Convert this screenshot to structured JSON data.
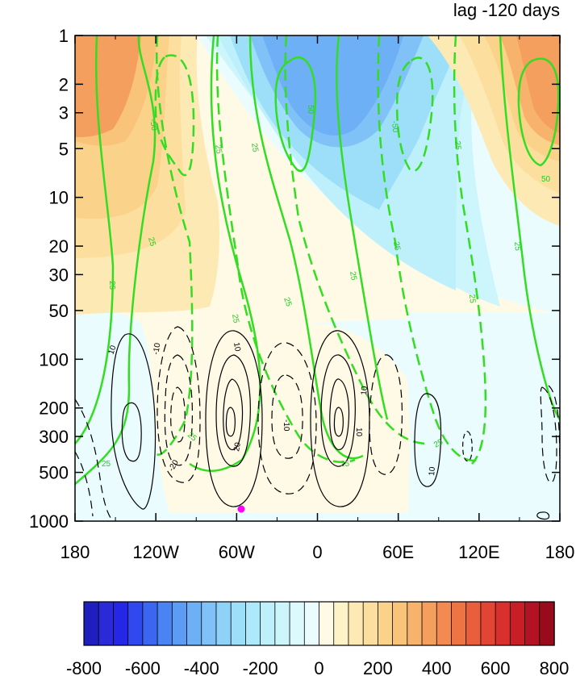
{
  "title": "lag -120 days",
  "chart_data": {
    "type": "contour",
    "x_axis": {
      "type": "longitude",
      "range": [
        -180,
        180
      ],
      "ticks": [
        -180,
        -120,
        -60,
        0,
        60,
        120,
        180
      ],
      "tick_labels": [
        "180",
        "120W",
        "60W",
        "0",
        "60E",
        "120E",
        "180"
      ]
    },
    "y_axis": {
      "type": "pressure",
      "scale": "log",
      "inverted": true,
      "range": [
        1,
        1000
      ],
      "ticks": [
        1,
        2,
        3,
        5,
        10,
        20,
        30,
        50,
        100,
        200,
        300,
        500,
        1000
      ],
      "tick_labels": [
        "1",
        "2",
        "3",
        "5",
        "10",
        "20",
        "30",
        "50",
        "100",
        "200",
        "300",
        "500",
        "1000"
      ]
    },
    "colorbar": {
      "levels": [
        -800,
        -750,
        -700,
        -650,
        -600,
        -550,
        -500,
        -450,
        -400,
        -350,
        -300,
        -250,
        -200,
        -150,
        -100,
        -50,
        0,
        50,
        100,
        150,
        200,
        250,
        300,
        350,
        400,
        450,
        500,
        550,
        600,
        650,
        700,
        750,
        800
      ],
      "tick_values": [
        -800,
        -600,
        -400,
        -200,
        0,
        200,
        400,
        600,
        800
      ],
      "tick_labels": [
        "-800",
        "-600",
        "-400",
        "-200",
        "0",
        "200",
        "400",
        "600",
        "800"
      ],
      "colors": [
        "#1f1fbf",
        "#2a2ad8",
        "#2626e6",
        "#2f48f0",
        "#3a66f2",
        "#4a84f4",
        "#5c9cf5",
        "#6eb0f6",
        "#80c2f7",
        "#8ed2f8",
        "#9ddff9",
        "#ade9fa",
        "#bef0fb",
        "#cdf5fc",
        "#dcf9fd",
        "#eafcfe",
        "#fefae6",
        "#fdf2c8",
        "#fde9b4",
        "#fcdf9f",
        "#fbd28a",
        "#f9c37a",
        "#f7b26c",
        "#f59f5f",
        "#f28a52",
        "#ee7446",
        "#e95e3c",
        "#e34534",
        "#d9302d",
        "#c81f27",
        "#b31222",
        "#990a1c"
      ]
    },
    "green_contour_labels": [
      "-25",
      "25",
      "-50",
      "50"
    ],
    "black_contour_labels": [
      "-20",
      "-10",
      "10",
      "20"
    ],
    "marker": {
      "lon": -55,
      "p": 900,
      "color": "#ff00ff"
    }
  }
}
